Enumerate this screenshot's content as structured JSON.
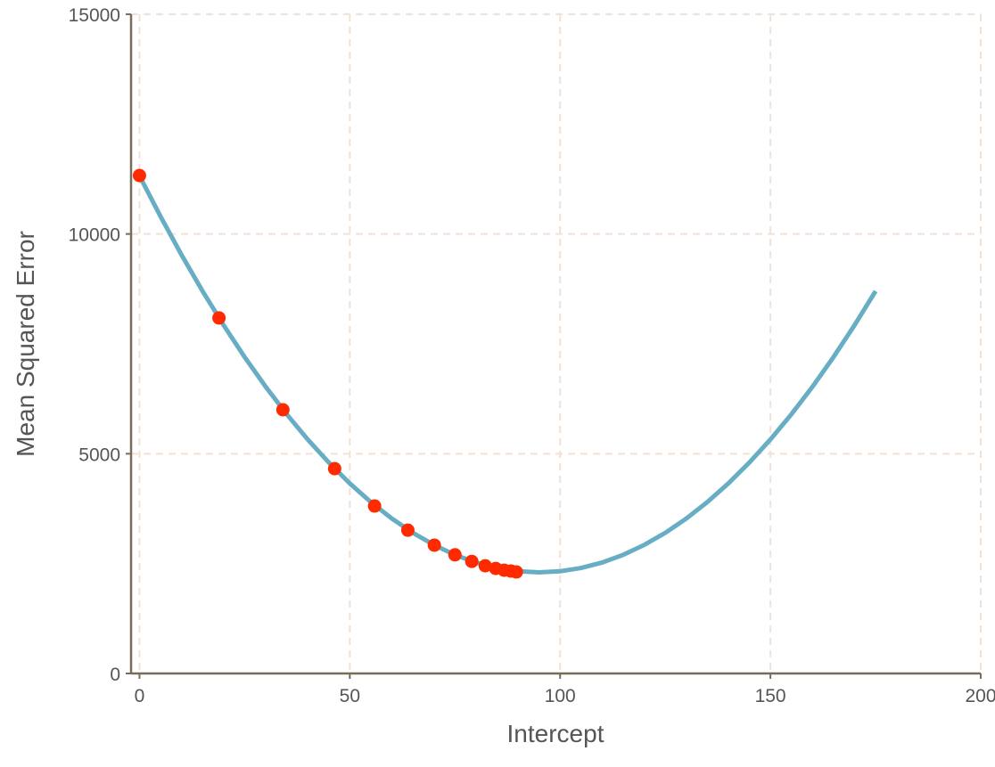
{
  "chart_data": {
    "type": "line",
    "x_label": "Intercept",
    "y_label": "Mean Squared Error",
    "xlim": [
      -2,
      200
    ],
    "ylim": [
      0,
      15000
    ],
    "xticks": [
      0,
      50,
      100,
      150,
      200
    ],
    "yticks": [
      0,
      5000,
      10000,
      15000
    ],
    "grid": true,
    "series": [
      {
        "type": "line",
        "color": "#67adc4",
        "x": [
          0,
          5,
          10,
          15,
          20,
          25,
          30,
          35,
          40,
          45,
          50,
          55,
          60,
          65,
          70,
          75,
          80,
          85,
          90,
          95,
          100,
          105,
          110,
          115,
          120,
          125,
          130,
          135,
          140,
          145,
          150,
          155,
          160,
          165,
          170,
          175
        ],
        "values": [
          11325,
          10400,
          9525,
          8700,
          7925,
          7200,
          6525,
          5900,
          5325,
          4800,
          4325,
          3900,
          3525,
          3200,
          2925,
          2700,
          2525,
          2400,
          2325,
          2300,
          2325,
          2400,
          2525,
          2700,
          2925,
          3200,
          3525,
          3900,
          4325,
          4800,
          5325,
          5900,
          6525,
          7200,
          7925,
          8700
        ]
      },
      {
        "type": "scatter",
        "color": "#ff2a00",
        "x": [
          0,
          18.9,
          34.1,
          46.4,
          55.9,
          63.8,
          70.1,
          75.0,
          79.0,
          82.2,
          84.7,
          86.7,
          88.3,
          89.6
        ],
        "values": [
          11330,
          8090,
          6000,
          4660,
          3810,
          3260,
          2920,
          2700,
          2550,
          2450,
          2390,
          2350,
          2330,
          2310
        ]
      }
    ]
  }
}
